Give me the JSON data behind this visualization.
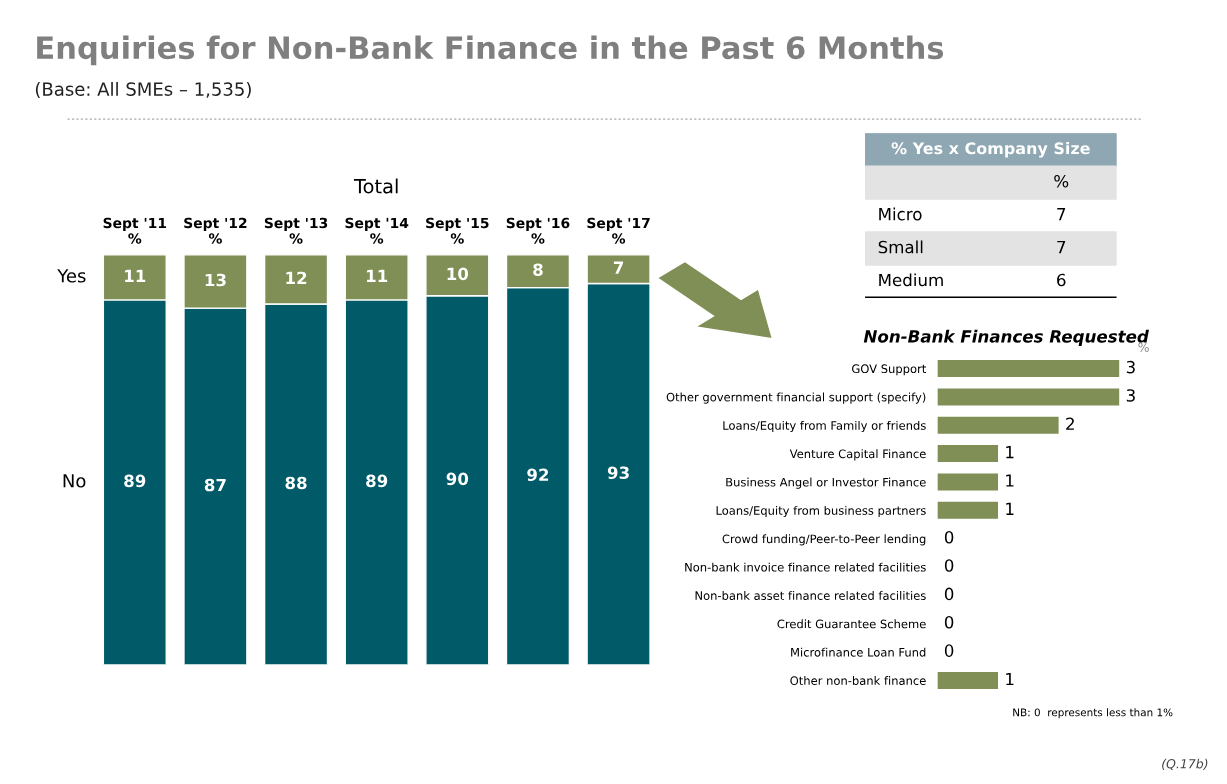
{
  "chart_data": [
    {
      "type": "bar",
      "title": "Enquiries for Non-Bank Finance in the Past 6 Months",
      "subtitle": "(Base: All SMEs – 1,535)",
      "annotations": [
        "Total",
        "(Q.17b)"
      ],
      "categories": [
        "Sept '11\n%",
        "Sept '12\n%",
        "Sept '13\n%",
        "Sept '14\n%",
        "Sept '15\n%",
        "Sept '16\n%",
        "Sept '17\n%"
      ],
      "stacked": true,
      "data_labels": true,
      "series": [
        {
          "name": "No",
          "color": "#005a68",
          "values": [
            89,
            87,
            88,
            89,
            90,
            92,
            93
          ]
        },
        {
          "name": "Yes",
          "color": "#7f8f55",
          "values": [
            11,
            13,
            12,
            11,
            10,
            8,
            7
          ]
        }
      ]
    },
    {
      "type": "bar",
      "orientation": "horizontal",
      "title": "Non-Bank Finances Requested",
      "annotations": [
        "%",
        "NB: 0  represents less than 1%"
      ],
      "data_labels": true,
      "color": "#7f8f55",
      "categories": [
        "GOV Support",
        "Other government financial support (specify)",
        "Loans/Equity from Family or friends",
        "Venture Capital Finance",
        "Business Angel or Investor Finance",
        "Loans/Equity from business partners",
        "Crowd funding/Peer-to-Peer lending",
        "Non-bank invoice finance related facilities",
        "Non-bank asset finance related facilities",
        "Credit Guarantee Scheme",
        "Microfinance Loan Fund",
        "Other non-bank finance"
      ],
      "values": [
        3,
        3,
        2,
        1,
        1,
        1,
        0,
        0,
        0,
        0,
        0,
        1
      ]
    },
    {
      "type": "other",
      "title": "% Yes x Company Size",
      "annotations": [
        "%"
      ],
      "categories": [
        "Micro",
        "Small",
        "Medium"
      ],
      "values": [
        7,
        7,
        6
      ],
      "data_labels": true
    }
  ]
}
